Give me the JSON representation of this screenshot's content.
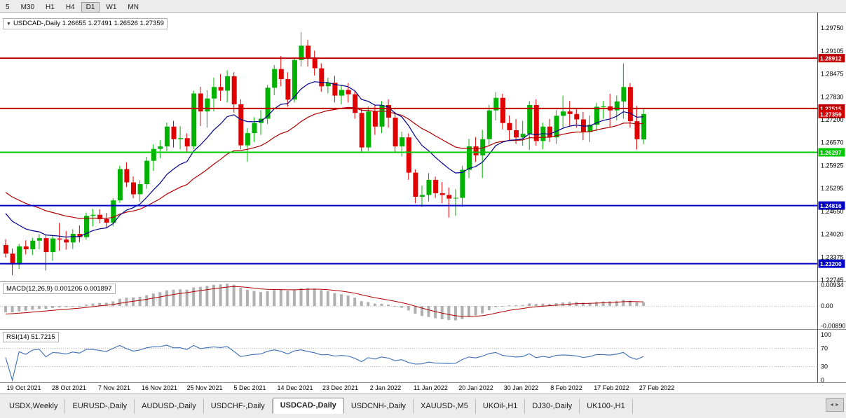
{
  "toolbar": {
    "timeframes": [
      "5",
      "M30",
      "H1",
      "H4",
      "D1",
      "W1",
      "MN"
    ],
    "active": "D1"
  },
  "chart": {
    "title": "USDCAD-,Daily",
    "ohlc_text": "1.26655 1.27491 1.26526 1.27359",
    "open": "1.26655",
    "high": "1.27491",
    "low": "1.26526",
    "close": "1.27359"
  },
  "indicator_labels": {
    "macd": "MACD(12,26,9) 0.001206 0.001897",
    "rsi": "RSI(14) 51.7215"
  },
  "tabs": {
    "items": [
      "USDX,Weekly",
      "EURUSD-,Daily",
      "AUDUSD-,Daily",
      "USDCHF-,Daily",
      "USDCAD-,Daily",
      "USDCNH-,Daily",
      "XAUUSD-,M5",
      "UKOil-,H1",
      "DJ30-,Daily",
      "UK100-,H1"
    ],
    "active": "USDCAD-,Daily"
  },
  "chart_data": {
    "type": "candlestick",
    "symbol": "USDCAD",
    "timeframe": "Daily",
    "up_color": "#00b200",
    "down_color": "#e00000",
    "y_axis": {
      "max": 1.2975,
      "min": 1.22745,
      "labels": [
        "1.29750",
        "1.29105",
        "1.28475",
        "1.27830",
        "1.27200",
        "1.26570",
        "1.25925",
        "1.25295",
        "1.24650",
        "1.24020",
        "1.23375",
        "1.22745"
      ]
    },
    "x_axis": {
      "labels": [
        "19 Oct 2021",
        "28 Oct 2021",
        "7 Nov 2021",
        "16 Nov 2021",
        "25 Nov 2021",
        "5 Dec 2021",
        "14 Dec 2021",
        "23 Dec 2021",
        "2 Jan 2022",
        "11 Jan 2022",
        "20 Jan 2022",
        "30 Jan 2022",
        "8 Feb 2022",
        "17 Feb 2022",
        "27 Feb 2022"
      ]
    },
    "levels": [
      {
        "value": 1.28912,
        "label": "1.28912",
        "color": "#c00000",
        "line": true,
        "role": "resistance"
      },
      {
        "value": 1.27515,
        "label": "1.27515",
        "color": "#c00000",
        "line": true,
        "role": "resistance"
      },
      {
        "value": 1.27359,
        "label": "1.27359",
        "color": "#d40000",
        "line": false,
        "role": "current-price"
      },
      {
        "value": 1.26297,
        "label": "1.26297",
        "color": "#00c800",
        "line": true,
        "role": "support"
      },
      {
        "value": 1.24816,
        "label": "1.24816",
        "color": "#0000c8",
        "line": true,
        "role": "support"
      },
      {
        "value": 1.232,
        "label": "1.23200",
        "color": "#0000c8",
        "line": true,
        "role": "support"
      }
    ],
    "overlays": [
      {
        "name": "ma-slow",
        "type": "ema",
        "period": 30,
        "color": "#b00000",
        "seed": 1.253
      },
      {
        "name": "ma-fast",
        "type": "ema",
        "period": 12,
        "color": "#00008b",
        "seed": 1.248
      }
    ],
    "indicators": [
      {
        "name": "MACD",
        "params": "12,26,9",
        "main_value": 0.001206,
        "signal_value": 0.001897,
        "axis_labels": [
          "0.00934",
          "0.00",
          "-0.00890"
        ],
        "histogram_color": "#b0b0b0",
        "signal_color": "#b00000"
      },
      {
        "name": "RSI",
        "params": "14",
        "value": 51.7215,
        "axis_labels": [
          "100",
          "70",
          "30",
          "0"
        ],
        "levels": [
          70,
          30
        ],
        "color": "#3c6eb4"
      }
    ],
    "candles": [
      [
        1.2372,
        1.2388,
        1.2337,
        1.2348
      ],
      [
        1.2348,
        1.2362,
        1.2288,
        1.2318
      ],
      [
        1.2318,
        1.2375,
        1.2305,
        1.2368
      ],
      [
        1.2368,
        1.2385,
        1.2346,
        1.236
      ],
      [
        1.236,
        1.2392,
        1.2344,
        1.2384
      ],
      [
        1.2384,
        1.2402,
        1.236,
        1.2391
      ],
      [
        1.2391,
        1.2399,
        1.2301,
        1.2352
      ],
      [
        1.2352,
        1.2398,
        1.2328,
        1.239
      ],
      [
        1.239,
        1.2433,
        1.2356,
        1.2387
      ],
      [
        1.2387,
        1.2411,
        1.2359,
        1.2379
      ],
      [
        1.2379,
        1.2416,
        1.2361,
        1.2403
      ],
      [
        1.2403,
        1.2426,
        1.2379,
        1.2394
      ],
      [
        1.2394,
        1.2462,
        1.2387,
        1.2453
      ],
      [
        1.2453,
        1.2472,
        1.2424,
        1.2456
      ],
      [
        1.2456,
        1.2471,
        1.2432,
        1.2444
      ],
      [
        1.2444,
        1.2461,
        1.2418,
        1.2434
      ],
      [
        1.2434,
        1.2502,
        1.2424,
        1.2496
      ],
      [
        1.2496,
        1.2592,
        1.2489,
        1.2583
      ],
      [
        1.2583,
        1.2602,
        1.2533,
        1.2546
      ],
      [
        1.2546,
        1.2562,
        1.2502,
        1.2513
      ],
      [
        1.2513,
        1.2552,
        1.2493,
        1.2541
      ],
      [
        1.2541,
        1.2617,
        1.2528,
        1.2606
      ],
      [
        1.2606,
        1.2652,
        1.2578,
        1.2639
      ],
      [
        1.2639,
        1.2663,
        1.2613,
        1.2646
      ],
      [
        1.2646,
        1.2712,
        1.2633,
        1.2701
      ],
      [
        1.2701,
        1.2717,
        1.2643,
        1.2666
      ],
      [
        1.2666,
        1.2702,
        1.2638,
        1.2669
      ],
      [
        1.2669,
        1.2682,
        1.2628,
        1.2646
      ],
      [
        1.2646,
        1.2801,
        1.2638,
        1.2793
      ],
      [
        1.2793,
        1.2812,
        1.2703,
        1.2743
      ],
      [
        1.2743,
        1.2802,
        1.2698,
        1.2779
      ],
      [
        1.2779,
        1.2837,
        1.2743,
        1.2811
      ],
      [
        1.2811,
        1.2847,
        1.2773,
        1.2801
      ],
      [
        1.2801,
        1.2857,
        1.2768,
        1.2841
      ],
      [
        1.2841,
        1.2852,
        1.274,
        1.2763
      ],
      [
        1.2763,
        1.2777,
        1.2638,
        1.2649
      ],
      [
        1.2649,
        1.2697,
        1.2603,
        1.2683
      ],
      [
        1.2683,
        1.2727,
        1.2658,
        1.2711
      ],
      [
        1.2711,
        1.2747,
        1.2678,
        1.2723
      ],
      [
        1.2723,
        1.2817,
        1.2708,
        1.2809
      ],
      [
        1.2809,
        1.2872,
        1.2788,
        1.2861
      ],
      [
        1.2861,
        1.2897,
        1.2813,
        1.2833
      ],
      [
        1.2833,
        1.2852,
        1.2756,
        1.2776
      ],
      [
        1.2776,
        1.2892,
        1.2768,
        1.2886
      ],
      [
        1.2886,
        1.2964,
        1.2868,
        1.2926
      ],
      [
        1.2926,
        1.2942,
        1.2868,
        1.2893
      ],
      [
        1.2893,
        1.2912,
        1.2843,
        1.2863
      ],
      [
        1.2863,
        1.2877,
        1.2798,
        1.2813
      ],
      [
        1.2813,
        1.2837,
        1.2793,
        1.2823
      ],
      [
        1.2823,
        1.2842,
        1.2768,
        1.2787
      ],
      [
        1.2787,
        1.2817,
        1.2763,
        1.2803
      ],
      [
        1.2803,
        1.2822,
        1.2768,
        1.2791
      ],
      [
        1.2791,
        1.2802,
        1.2723,
        1.2739
      ],
      [
        1.2739,
        1.275,
        1.2628,
        1.2643
      ],
      [
        1.2643,
        1.2757,
        1.2633,
        1.2743
      ],
      [
        1.2743,
        1.2762,
        1.2678,
        1.2701
      ],
      [
        1.2701,
        1.2772,
        1.2683,
        1.2761
      ],
      [
        1.2761,
        1.2777,
        1.2698,
        1.2726
      ],
      [
        1.2726,
        1.2742,
        1.263,
        1.2646
      ],
      [
        1.2646,
        1.2687,
        1.2618,
        1.2671
      ],
      [
        1.2671,
        1.2682,
        1.2553,
        1.2573
      ],
      [
        1.2573,
        1.2582,
        1.2488,
        1.2506
      ],
      [
        1.2506,
        1.2537,
        1.2478,
        1.2511
      ],
      [
        1.2511,
        1.2572,
        1.2493,
        1.2553
      ],
      [
        1.2553,
        1.2562,
        1.2503,
        1.2516
      ],
      [
        1.2516,
        1.2547,
        1.2488,
        1.2511
      ],
      [
        1.2511,
        1.2532,
        1.2448,
        1.2501
      ],
      [
        1.2501,
        1.2527,
        1.2453,
        1.2503
      ],
      [
        1.2503,
        1.2592,
        1.2478,
        1.2581
      ],
      [
        1.2581,
        1.2667,
        1.2558,
        1.2646
      ],
      [
        1.2646,
        1.2672,
        1.2603,
        1.2621
      ],
      [
        1.2621,
        1.2692,
        1.2558,
        1.2666
      ],
      [
        1.2666,
        1.2762,
        1.2648,
        1.2746
      ],
      [
        1.2746,
        1.2797,
        1.2718,
        1.2781
      ],
      [
        1.2781,
        1.2792,
        1.2693,
        1.2711
      ],
      [
        1.2711,
        1.2732,
        1.2663,
        1.2691
      ],
      [
        1.2691,
        1.2722,
        1.2653,
        1.2671
      ],
      [
        1.2671,
        1.2717,
        1.2648,
        1.2681
      ],
      [
        1.2681,
        1.2772,
        1.2636,
        1.2761
      ],
      [
        1.2761,
        1.2777,
        1.2648,
        1.2661
      ],
      [
        1.2661,
        1.2712,
        1.2638,
        1.2701
      ],
      [
        1.2701,
        1.2722,
        1.2658,
        1.2671
      ],
      [
        1.2671,
        1.2747,
        1.2653,
        1.2731
      ],
      [
        1.2731,
        1.2787,
        1.2698,
        1.2743
      ],
      [
        1.2743,
        1.2772,
        1.2703,
        1.2736
      ],
      [
        1.2736,
        1.2752,
        1.2698,
        1.2721
      ],
      [
        1.2721,
        1.2742,
        1.2663,
        1.2686
      ],
      [
        1.2686,
        1.2732,
        1.2658,
        1.2706
      ],
      [
        1.2706,
        1.2767,
        1.2688,
        1.2756
      ],
      [
        1.2756,
        1.2772,
        1.2723,
        1.2757
      ],
      [
        1.2757,
        1.2792,
        1.2698,
        1.2746
      ],
      [
        1.2746,
        1.2787,
        1.2718,
        1.2771
      ],
      [
        1.2771,
        1.2877,
        1.2723,
        1.2811
      ],
      [
        1.2811,
        1.2822,
        1.2698,
        1.2716
      ],
      [
        1.2716,
        1.2758,
        1.2638,
        1.2666
      ],
      [
        1.26655,
        1.27491,
        1.26526,
        1.27359
      ]
    ]
  }
}
